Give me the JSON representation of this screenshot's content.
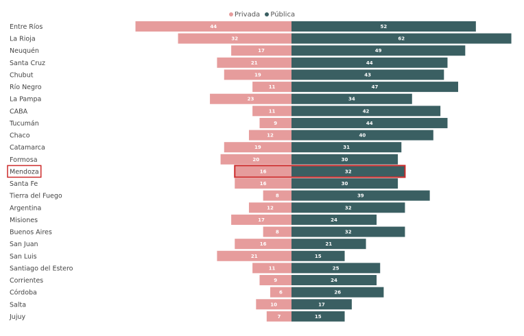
{
  "chart_data": {
    "type": "bar",
    "orientation": "horizontal-diverging",
    "categories": [
      "Entre Ríos",
      "La Rioja",
      "Neuquén",
      "Santa Cruz",
      "Chubut",
      "Río Negro",
      "La Pampa",
      "CABA",
      "Tucumán",
      "Chaco",
      "Catamarca",
      "Formosa",
      "Mendoza",
      "Santa Fe",
      "Tierra del Fuego",
      "Argentina",
      "Misiones",
      "Buenos Aires",
      "San Juan",
      "San Luis",
      "Santiago del Estero",
      "Corrientes",
      "Córdoba",
      "Salta",
      "Jujuy"
    ],
    "series": [
      {
        "name": "Privada",
        "color": "#e69c9c",
        "values": [
          44,
          32,
          17,
          21,
          19,
          11,
          23,
          11,
          9,
          12,
          19,
          20,
          16,
          16,
          8,
          12,
          17,
          8,
          16,
          21,
          11,
          9,
          6,
          10,
          7
        ]
      },
      {
        "name": "Pública",
        "color": "#3a5f62",
        "values": [
          52,
          62,
          49,
          44,
          43,
          47,
          34,
          42,
          44,
          40,
          31,
          30,
          32,
          30,
          39,
          32,
          24,
          32,
          21,
          15,
          25,
          24,
          26,
          17,
          15
        ]
      }
    ],
    "legend": {
      "position": "top-center"
    },
    "highlight": {
      "category": "Mendoza",
      "color": "#cc2a2a"
    }
  }
}
